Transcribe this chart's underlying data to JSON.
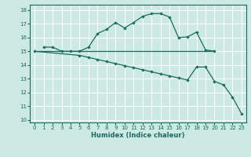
{
  "xlabel": "Humidex (Indice chaleur)",
  "xlim": [
    -0.5,
    23.5
  ],
  "ylim": [
    9.8,
    18.4
  ],
  "yticks": [
    10,
    11,
    12,
    13,
    14,
    15,
    16,
    17,
    18
  ],
  "xticks": [
    0,
    1,
    2,
    3,
    4,
    5,
    6,
    7,
    8,
    9,
    10,
    11,
    12,
    13,
    14,
    15,
    16,
    17,
    18,
    19,
    20,
    21,
    22,
    23
  ],
  "bg_color": "#cce9e3",
  "line_color": "#1a6b5e",
  "grid_color": "#ffffff",
  "line1_x": [
    1,
    2,
    3,
    4,
    5,
    6,
    7,
    8,
    9,
    10,
    11,
    12,
    13,
    14,
    15,
    16,
    17,
    18,
    19,
    20
  ],
  "line1_y": [
    15.3,
    15.3,
    15.0,
    15.0,
    15.0,
    15.3,
    16.3,
    16.6,
    17.1,
    16.7,
    17.1,
    17.55,
    17.75,
    17.75,
    17.5,
    16.0,
    16.05,
    16.4,
    15.1,
    15.0
  ],
  "line2_x": [
    0,
    20
  ],
  "line2_y": [
    15.0,
    15.0
  ],
  "line3_x": [
    0,
    5,
    6,
    7,
    8,
    9,
    10,
    11,
    12,
    13,
    14,
    15,
    16,
    17,
    18,
    19,
    20,
    21,
    22,
    23
  ],
  "line3_y": [
    15.0,
    14.7,
    14.55,
    14.4,
    14.25,
    14.1,
    13.95,
    13.8,
    13.65,
    13.5,
    13.35,
    13.2,
    13.05,
    12.9,
    13.85,
    13.85,
    12.8,
    12.55,
    11.65,
    10.45
  ]
}
